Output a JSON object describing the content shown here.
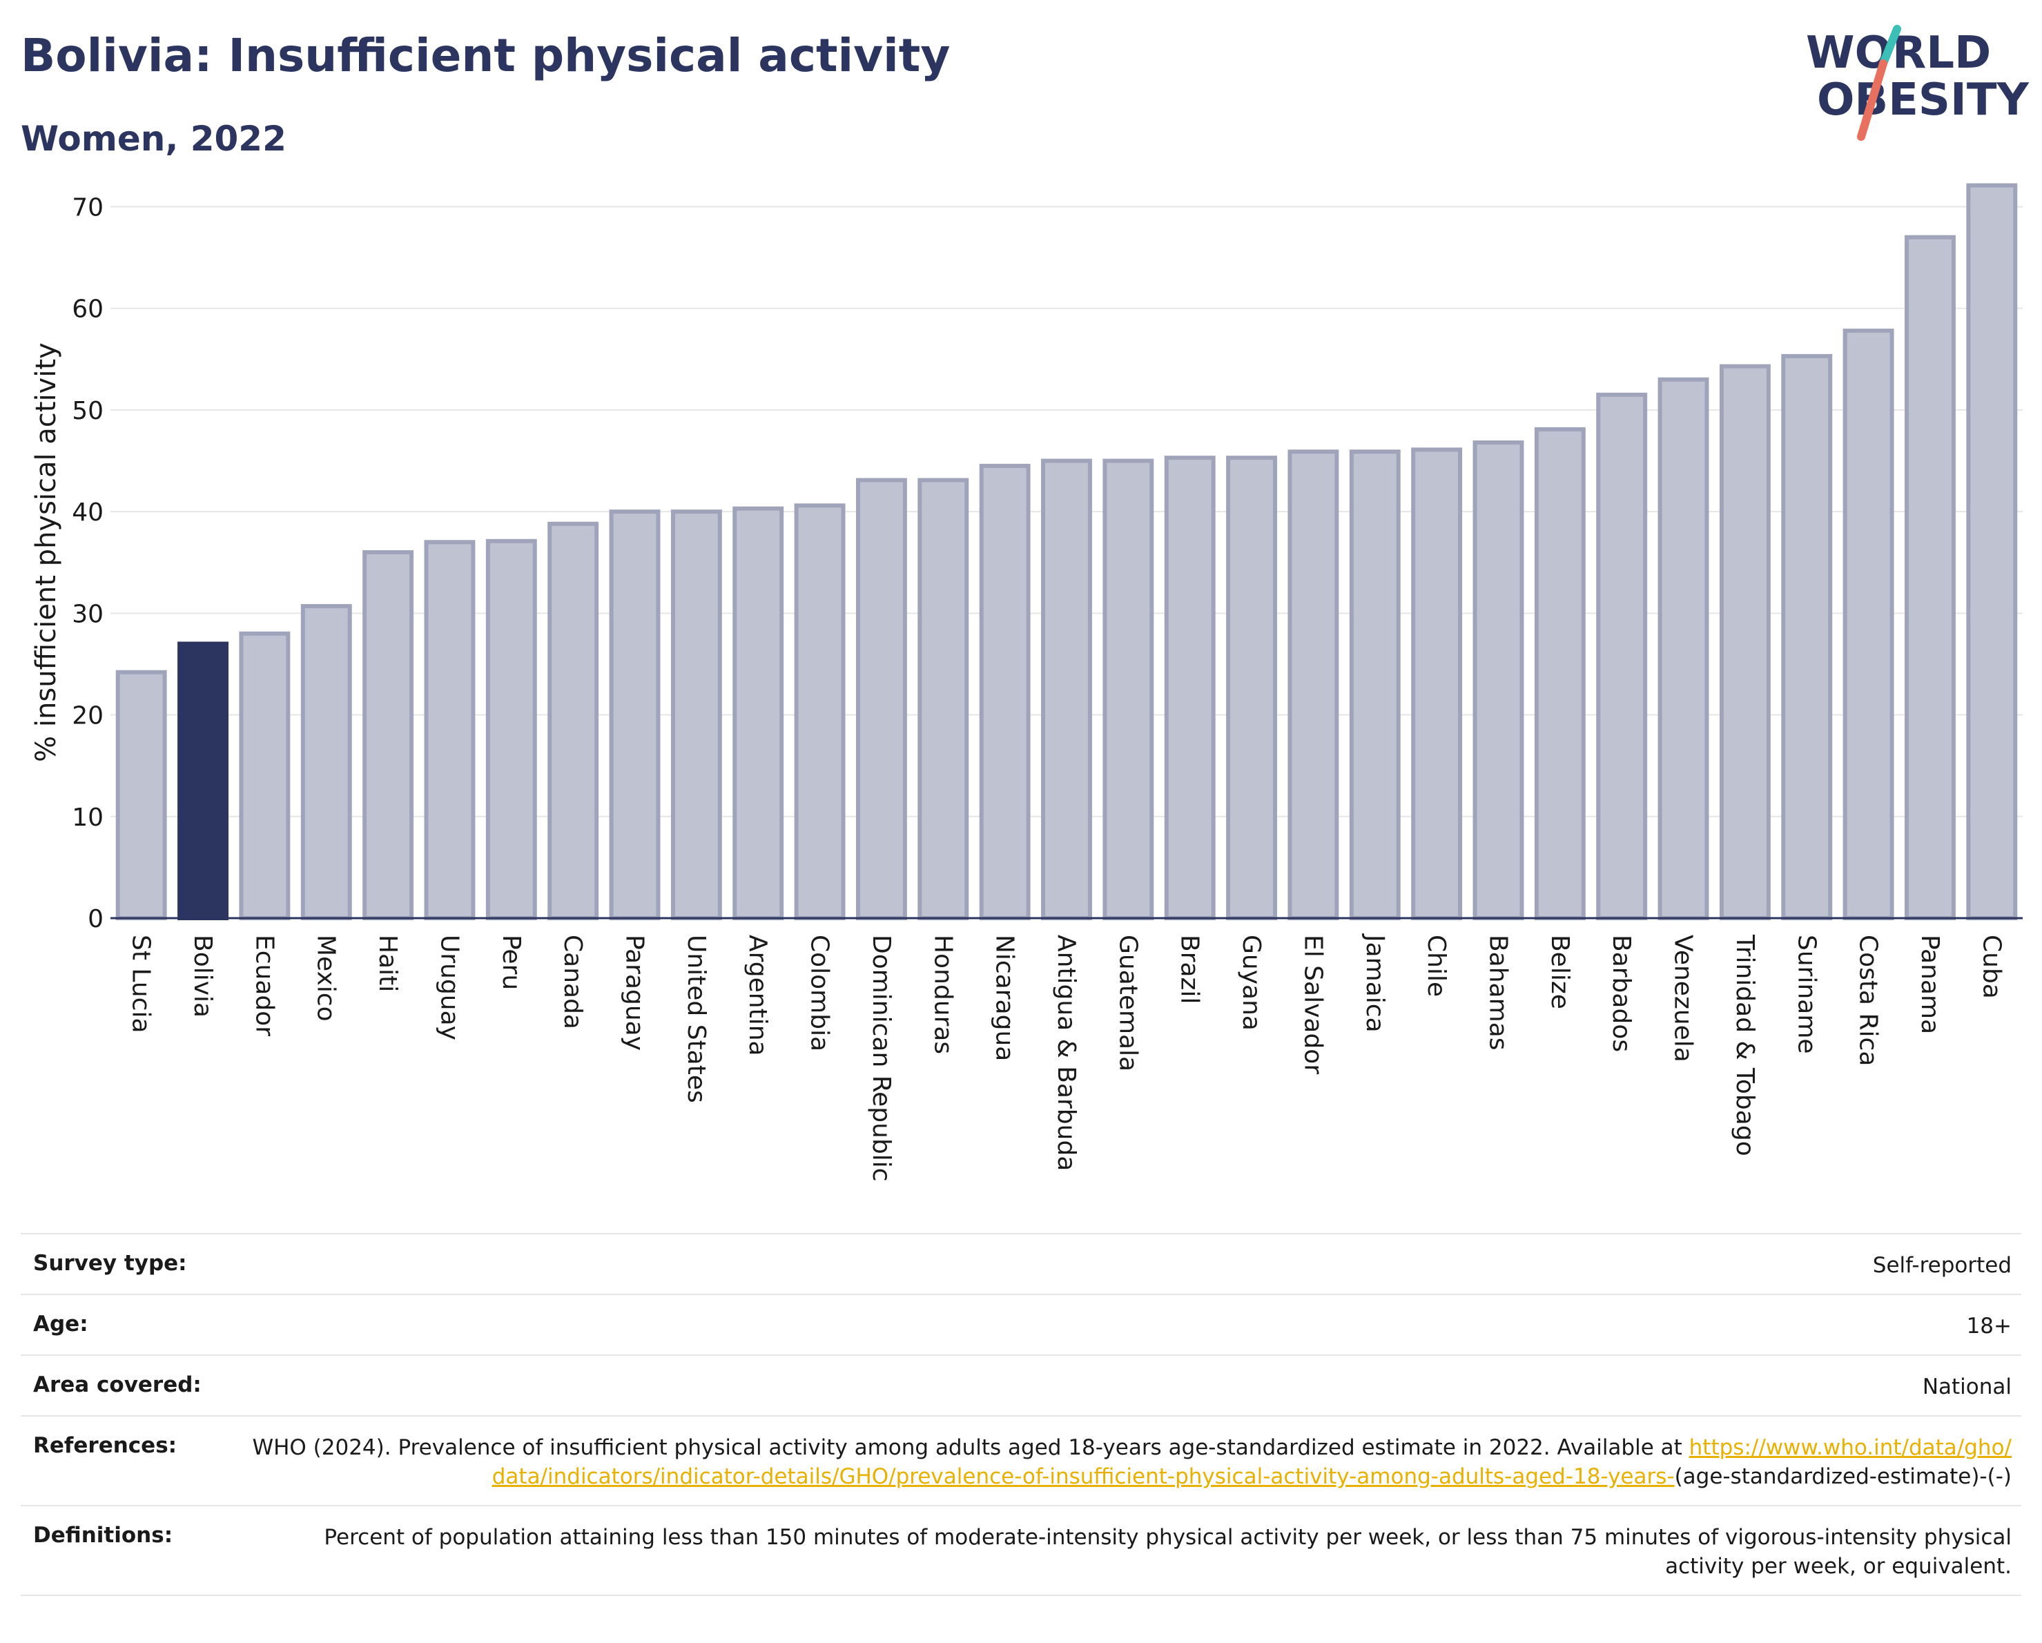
{
  "header": {
    "title": "Bolivia: Insufficient physical activity",
    "subtitle": "Women, 2022"
  },
  "logo": {
    "line1": "WORLD",
    "line2": "OBESITY",
    "colors": {
      "text": "#2b3560",
      "slash_teal": "#3bbfb6",
      "slash_coral": "#e8705f"
    }
  },
  "chart_data": {
    "type": "bar",
    "title": "Bolivia: Insufficient physical activity",
    "subtitle": "Women, 2022",
    "ylabel": "% insufficient physical activity",
    "xlabel": "",
    "ylim": [
      0,
      72
    ],
    "yticks": [
      0,
      10,
      20,
      30,
      40,
      50,
      60,
      70
    ],
    "grid": true,
    "highlight": "Bolivia",
    "colors": {
      "bar": "#bfc2d0",
      "bar_border": "#a0a4ba",
      "highlight": "#2b3560",
      "grid": "#e6e6e6",
      "axis": "#2b3560"
    },
    "categories": [
      "St Lucia",
      "Bolivia",
      "Ecuador",
      "Mexico",
      "Haiti",
      "Uruguay",
      "Peru",
      "Canada",
      "Paraguay",
      "United States",
      "Argentina",
      "Colombia",
      "Dominican Republic",
      "Honduras",
      "Nicaragua",
      "Antigua & Barbuda",
      "Guatemala",
      "Brazil",
      "Guyana",
      "El Salvador",
      "Jamaica",
      "Chile",
      "Bahamas",
      "Belize",
      "Barbados",
      "Venezuela",
      "Trinidad & Tobago",
      "Suriname",
      "Costa Rica",
      "Panama",
      "Cuba"
    ],
    "values": [
      24.2,
      27.0,
      28.0,
      30.7,
      36.0,
      37.0,
      37.1,
      38.8,
      40.0,
      40.0,
      40.3,
      40.6,
      43.1,
      43.1,
      44.5,
      45.0,
      45.0,
      45.3,
      45.3,
      45.9,
      45.9,
      46.1,
      46.8,
      48.1,
      51.5,
      53.0,
      54.3,
      55.3,
      57.8,
      67.0,
      72.1
    ]
  },
  "meta": {
    "survey_type": {
      "label": "Survey type:",
      "value": "Self-reported"
    },
    "age": {
      "label": "Age:",
      "value": "18+"
    },
    "area": {
      "label": "Area covered:",
      "value": "National"
    },
    "references": {
      "label": "References:",
      "text": "WHO (2024). Prevalence of insufficient physical activity among adults aged 18-years age-standardized estimate in 2022. Available at",
      "link": "https://www.who.int/data/gho/data/indicators/indicator-details/GHO/prevalence-of-insufficient-physical-activity-among-adults-aged-18-years-",
      "suffix": "(age-standardized-estimate)-(-)"
    },
    "definitions": {
      "label": "Definitions:",
      "value": "Percent of population attaining less than 150 minutes of moderate-intensity physical activity per week, or less than 75 minutes of vigorous-intensity physical activity per week, or equivalent."
    }
  }
}
